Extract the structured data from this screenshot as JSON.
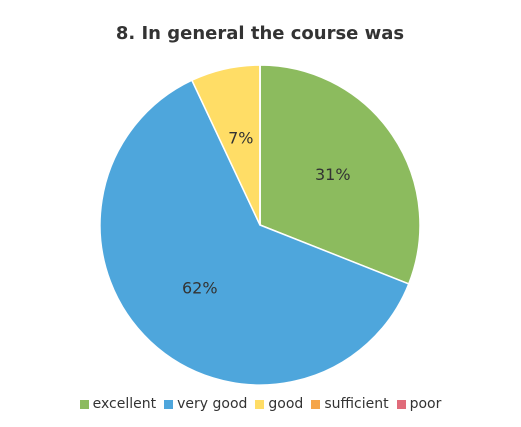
{
  "chart_data": {
    "type": "pie",
    "title": "8. In general the course was",
    "categories": [
      "excellent",
      "very good",
      "good",
      "sufficient",
      "poor"
    ],
    "values": [
      31,
      62,
      7,
      0,
      0
    ],
    "value_labels": [
      "31%",
      "62%",
      "7%",
      null,
      null
    ],
    "colors": [
      "#8cbb5e",
      "#4ea6dc",
      "#ffdd66",
      "#f5a54a",
      "#e06b7a"
    ],
    "legend": "bottom"
  }
}
